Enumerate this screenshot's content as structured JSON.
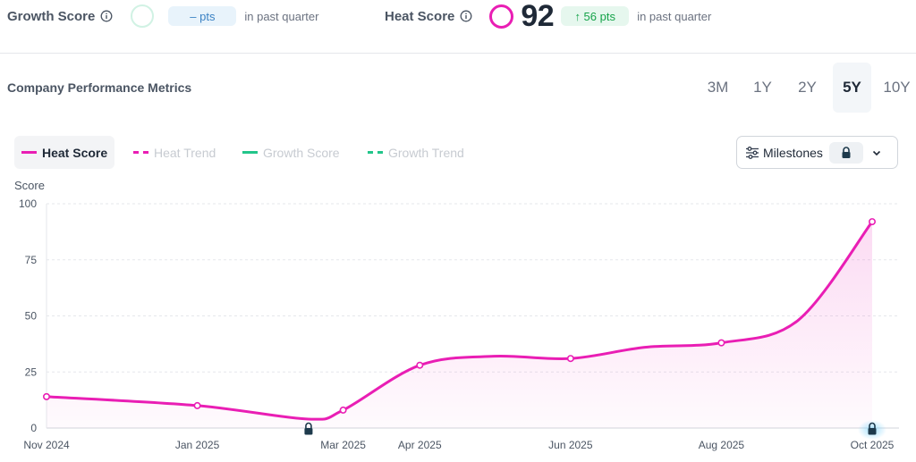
{
  "growth": {
    "label": "Growth Score",
    "delta": "– pts",
    "period": "in past quarter"
  },
  "heat": {
    "label": "Heat Score",
    "value": "92",
    "delta": "↑ 56 pts",
    "period": "in past quarter"
  },
  "section": {
    "title": "Company Performance Metrics"
  },
  "ranges": [
    {
      "label": "3M",
      "active": false
    },
    {
      "label": "1Y",
      "active": false
    },
    {
      "label": "2Y",
      "active": false
    },
    {
      "label": "5Y",
      "active": true
    },
    {
      "label": "10Y",
      "active": false
    }
  ],
  "legend": [
    {
      "label": "Heat Score",
      "color": "#e91eb4",
      "dashed": false,
      "active": true
    },
    {
      "label": "Heat Trend",
      "color": "#e91eb4",
      "dashed": true,
      "active": false
    },
    {
      "label": "Growth Score",
      "color": "#22c58a",
      "dashed": false,
      "active": false
    },
    {
      "label": "Growth Trend",
      "color": "#22c58a",
      "dashed": true,
      "active": false
    }
  ],
  "milestones": {
    "label": "Milestones",
    "icons": [
      "sliders-icon",
      "lock-icon",
      "chevron-down-icon"
    ]
  },
  "colors": {
    "heat": "#e91eb4",
    "growth": "#22c58a",
    "grid": "#e5e7eb",
    "axis_text": "#4b5563"
  },
  "chart_data": {
    "type": "line",
    "ylabel": "Score",
    "ylim": [
      0,
      100
    ],
    "yticks": [
      0,
      25,
      50,
      75,
      100
    ],
    "x_ticks": [
      "Nov 2024",
      "Jan 2025",
      "Mar 2025",
      "Apr 2025",
      "Jun 2025",
      "Aug 2025",
      "Oct 2025"
    ],
    "grid": true,
    "series": [
      {
        "name": "Heat Score",
        "x": [
          "2024-11-01",
          "2025-01-01",
          "2025-02-15",
          "2025-03-01",
          "2025-04-01",
          "2025-05-01",
          "2025-06-01",
          "2025-07-01",
          "2025-08-01",
          "2025-09-01",
          "2025-10-01"
        ],
        "values": [
          14,
          10,
          4,
          8,
          28,
          32,
          31,
          36,
          38,
          48,
          92
        ]
      }
    ],
    "markers": [
      {
        "x": "2024-11-01",
        "y": 14
      },
      {
        "x": "2025-01-01",
        "y": 10
      },
      {
        "x": "2025-03-01",
        "y": 8
      },
      {
        "x": "2025-04-01",
        "y": 28
      },
      {
        "x": "2025-06-01",
        "y": 31
      },
      {
        "x": "2025-08-01",
        "y": 38
      },
      {
        "x": "2025-10-01",
        "y": 92
      }
    ],
    "locked_milestones": [
      {
        "x": "2025-02-15"
      },
      {
        "x": "2025-10-01"
      }
    ]
  }
}
